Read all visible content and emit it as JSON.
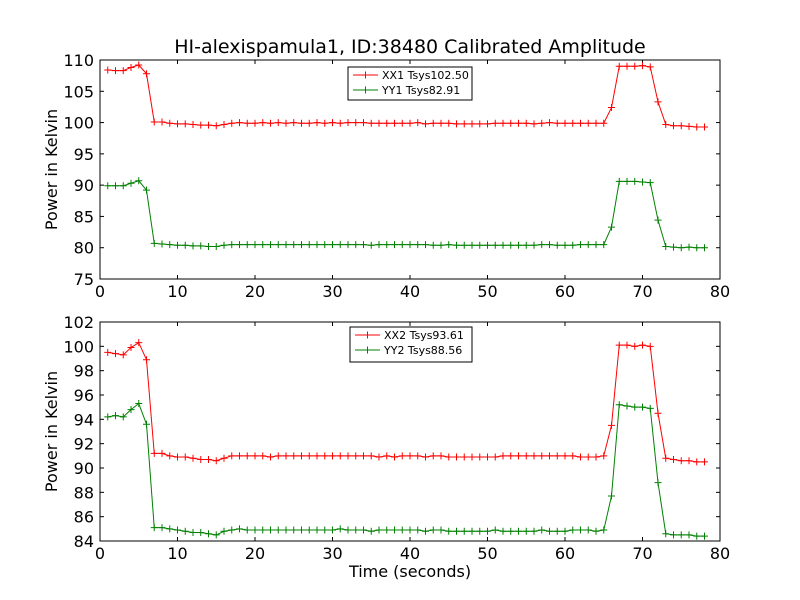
{
  "chart_data": [
    {
      "type": "line",
      "title": "HI-alexispamula1, ID:38480 Calibrated Amplitude",
      "xlabel": "",
      "ylabel": "Power in Kelvin",
      "xlim": [
        0,
        80
      ],
      "ylim": [
        75,
        110
      ],
      "xticks": [
        "0",
        "10",
        "20",
        "30",
        "40",
        "50",
        "60",
        "70",
        "80"
      ],
      "yticks": [
        "75",
        "80",
        "85",
        "90",
        "95",
        "100",
        "105",
        "110"
      ],
      "grid": false,
      "legend_position": "top-center",
      "x": [
        1,
        2,
        3,
        4,
        5,
        6,
        7,
        8,
        9,
        10,
        11,
        12,
        13,
        14,
        15,
        16,
        17,
        18,
        19,
        20,
        21,
        22,
        23,
        24,
        25,
        26,
        27,
        28,
        29,
        30,
        31,
        32,
        33,
        34,
        35,
        36,
        37,
        38,
        39,
        40,
        41,
        42,
        43,
        44,
        45,
        46,
        47,
        48,
        49,
        50,
        51,
        52,
        53,
        54,
        55,
        56,
        57,
        58,
        59,
        60,
        61,
        62,
        63,
        64,
        65,
        66,
        67,
        68,
        69,
        70,
        71,
        72,
        73,
        74,
        75,
        76,
        77,
        78
      ],
      "series": [
        {
          "name": "XX1 Tsys102.50",
          "color": "#ff0000",
          "values": [
            108.4,
            108.3,
            108.3,
            108.8,
            109.2,
            107.8,
            100.1,
            100.1,
            99.9,
            99.8,
            99.8,
            99.7,
            99.6,
            99.6,
            99.5,
            99.7,
            99.9,
            100.0,
            99.9,
            99.9,
            100.0,
            99.9,
            100.0,
            99.9,
            100.0,
            99.9,
            99.9,
            100.0,
            99.9,
            100.0,
            99.9,
            100.0,
            100.0,
            100.0,
            99.9,
            99.9,
            99.9,
            99.9,
            99.9,
            99.9,
            100.0,
            99.8,
            99.9,
            99.9,
            99.9,
            99.8,
            99.8,
            99.8,
            99.8,
            99.8,
            99.9,
            99.9,
            99.9,
            99.9,
            99.9,
            99.8,
            99.9,
            100.0,
            99.9,
            99.9,
            99.9,
            99.9,
            99.9,
            99.9,
            99.9,
            102.4,
            109.0,
            109.0,
            109.0,
            109.1,
            108.9,
            103.3,
            99.7,
            99.5,
            99.5,
            99.4,
            99.3,
            99.3
          ]
        },
        {
          "name": "YY1 Tsys82.91",
          "color": "#008000",
          "values": [
            89.9,
            89.9,
            89.9,
            90.3,
            90.7,
            89.2,
            80.7,
            80.6,
            80.5,
            80.4,
            80.4,
            80.3,
            80.3,
            80.2,
            80.2,
            80.4,
            80.5,
            80.5,
            80.5,
            80.5,
            80.5,
            80.5,
            80.5,
            80.5,
            80.5,
            80.5,
            80.5,
            80.5,
            80.5,
            80.5,
            80.5,
            80.5,
            80.5,
            80.5,
            80.4,
            80.5,
            80.5,
            80.5,
            80.5,
            80.5,
            80.5,
            80.5,
            80.4,
            80.4,
            80.5,
            80.4,
            80.4,
            80.4,
            80.4,
            80.4,
            80.4,
            80.4,
            80.4,
            80.4,
            80.4,
            80.4,
            80.5,
            80.5,
            80.4,
            80.4,
            80.4,
            80.5,
            80.5,
            80.5,
            80.5,
            83.3,
            90.6,
            90.6,
            90.6,
            90.5,
            90.4,
            84.4,
            80.2,
            80.1,
            80.0,
            80.1,
            80.0,
            80.0
          ]
        }
      ]
    },
    {
      "type": "line",
      "title": "",
      "xlabel": "Time (seconds)",
      "ylabel": "Power in Kelvin",
      "xlim": [
        0,
        80
      ],
      "ylim": [
        84,
        102
      ],
      "xticks": [
        "0",
        "10",
        "20",
        "30",
        "40",
        "50",
        "60",
        "70",
        "80"
      ],
      "yticks": [
        "84",
        "86",
        "88",
        "90",
        "92",
        "94",
        "96",
        "98",
        "100",
        "102"
      ],
      "grid": false,
      "legend_position": "top-center",
      "x": [
        1,
        2,
        3,
        4,
        5,
        6,
        7,
        8,
        9,
        10,
        11,
        12,
        13,
        14,
        15,
        16,
        17,
        18,
        19,
        20,
        21,
        22,
        23,
        24,
        25,
        26,
        27,
        28,
        29,
        30,
        31,
        32,
        33,
        34,
        35,
        36,
        37,
        38,
        39,
        40,
        41,
        42,
        43,
        44,
        45,
        46,
        47,
        48,
        49,
        50,
        51,
        52,
        53,
        54,
        55,
        56,
        57,
        58,
        59,
        60,
        61,
        62,
        63,
        64,
        65,
        66,
        67,
        68,
        69,
        70,
        71,
        72,
        73,
        74,
        75,
        76,
        77,
        78
      ],
      "series": [
        {
          "name": "XX2 Tsys93.61",
          "color": "#ff0000",
          "values": [
            99.5,
            99.4,
            99.3,
            99.9,
            100.3,
            98.9,
            91.2,
            91.2,
            91.0,
            90.9,
            90.9,
            90.8,
            90.7,
            90.7,
            90.6,
            90.8,
            91.0,
            91.0,
            91.0,
            91.0,
            91.0,
            90.9,
            91.0,
            91.0,
            91.0,
            91.0,
            91.0,
            91.0,
            91.0,
            91.0,
            91.0,
            91.0,
            91.0,
            91.0,
            91.0,
            90.9,
            91.0,
            90.9,
            91.0,
            91.0,
            91.0,
            90.9,
            91.0,
            91.0,
            90.9,
            90.9,
            90.9,
            90.9,
            90.9,
            90.9,
            90.9,
            91.0,
            91.0,
            91.0,
            91.0,
            91.0,
            91.0,
            91.0,
            91.0,
            91.0,
            91.0,
            90.9,
            90.9,
            90.9,
            91.0,
            93.5,
            100.1,
            100.1,
            100.0,
            100.1,
            100.0,
            94.5,
            90.8,
            90.7,
            90.6,
            90.6,
            90.5,
            90.5
          ]
        },
        {
          "name": "YY2 Tsys88.56",
          "color": "#008000",
          "values": [
            94.2,
            94.3,
            94.2,
            94.8,
            95.3,
            93.6,
            85.1,
            85.1,
            85.0,
            84.9,
            84.8,
            84.7,
            84.7,
            84.6,
            84.5,
            84.8,
            84.9,
            85.0,
            84.9,
            84.9,
            84.9,
            84.9,
            84.9,
            84.9,
            84.9,
            84.9,
            84.9,
            84.9,
            84.9,
            84.9,
            85.0,
            84.9,
            84.9,
            84.9,
            84.8,
            84.9,
            84.9,
            84.9,
            84.9,
            84.9,
            84.9,
            84.8,
            84.9,
            84.9,
            84.8,
            84.8,
            84.8,
            84.8,
            84.8,
            84.8,
            84.9,
            84.8,
            84.8,
            84.8,
            84.8,
            84.8,
            84.9,
            84.8,
            84.8,
            84.8,
            84.9,
            84.9,
            84.9,
            84.8,
            84.9,
            87.7,
            95.2,
            95.1,
            95.0,
            95.0,
            94.9,
            88.8,
            84.6,
            84.5,
            84.5,
            84.5,
            84.4,
            84.4
          ]
        }
      ]
    }
  ]
}
